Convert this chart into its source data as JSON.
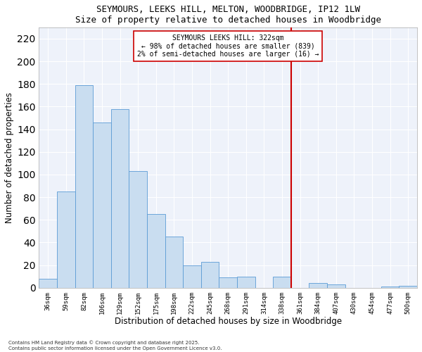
{
  "title": "SEYMOURS, LEEKS HILL, MELTON, WOODBRIDGE, IP12 1LW",
  "subtitle": "Size of property relative to detached houses in Woodbridge",
  "xlabel": "Distribution of detached houses by size in Woodbridge",
  "ylabel": "Number of detached properties",
  "bar_color": "#c9ddf0",
  "bar_edge_color": "#5b9bd5",
  "background_color": "#eef2fa",
  "categories": [
    "36sqm",
    "59sqm",
    "82sqm",
    "106sqm",
    "129sqm",
    "152sqm",
    "175sqm",
    "198sqm",
    "222sqm",
    "245sqm",
    "268sqm",
    "291sqm",
    "314sqm",
    "338sqm",
    "361sqm",
    "384sqm",
    "407sqm",
    "430sqm",
    "454sqm",
    "477sqm",
    "500sqm"
  ],
  "values": [
    8,
    85,
    179,
    146,
    158,
    103,
    65,
    45,
    20,
    23,
    9,
    10,
    0,
    10,
    0,
    4,
    3,
    0,
    0,
    1,
    2
  ],
  "ylim": [
    0,
    230
  ],
  "yticks": [
    0,
    20,
    40,
    60,
    80,
    100,
    120,
    140,
    160,
    180,
    200,
    220
  ],
  "vline_x": 13.5,
  "vline_color": "#cc0000",
  "annotation_title": "SEYMOURS LEEKS HILL: 322sqm",
  "annotation_line1": "← 98% of detached houses are smaller (839)",
  "annotation_line2": "2% of semi-detached houses are larger (16) →",
  "footer_line1": "Contains HM Land Registry data © Crown copyright and database right 2025.",
  "footer_line2": "Contains public sector information licensed under the Open Government Licence v3.0."
}
